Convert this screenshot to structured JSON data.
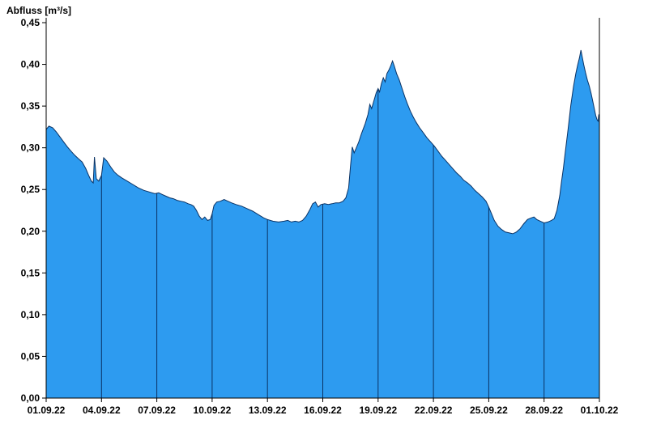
{
  "chart_data": {
    "type": "area",
    "title": "Abfluss [m³/s]",
    "ylabel": "Abfluss [m³/s]",
    "xlabel": "",
    "x_unit": "days since 01.09.22",
    "xlim": [
      0,
      30
    ],
    "ylim": [
      0,
      0.45
    ],
    "grid": "vertical-at-date-ticks",
    "legend": "none",
    "colors": {
      "fill": "#2d9bf0",
      "edge": "#0a3264",
      "axis": "#000000",
      "text": "#000000",
      "background": "#ffffff"
    },
    "x_ticks": [
      {
        "day": 0,
        "label": "01.09.22"
      },
      {
        "day": 3,
        "label": "04.09.22"
      },
      {
        "day": 6,
        "label": "07.09.22"
      },
      {
        "day": 9,
        "label": "10.09.22"
      },
      {
        "day": 12,
        "label": "13.09.22"
      },
      {
        "day": 15,
        "label": "16.09.22"
      },
      {
        "day": 18,
        "label": "19.09.22"
      },
      {
        "day": 21,
        "label": "22.09.22"
      },
      {
        "day": 24,
        "label": "25.09.22"
      },
      {
        "day": 27,
        "label": "28.09.22"
      },
      {
        "day": 30,
        "label": "01.10.22"
      }
    ],
    "y_ticks": [
      {
        "value": 0.0,
        "label": "0,00"
      },
      {
        "value": 0.05,
        "label": "0,05"
      },
      {
        "value": 0.1,
        "label": "0,10"
      },
      {
        "value": 0.15,
        "label": "0,15"
      },
      {
        "value": 0.2,
        "label": "0,20"
      },
      {
        "value": 0.25,
        "label": "0,25"
      },
      {
        "value": 0.3,
        "label": "0,30"
      },
      {
        "value": 0.35,
        "label": "0,35"
      },
      {
        "value": 0.4,
        "label": "0,40"
      },
      {
        "value": 0.45,
        "label": "0,45"
      }
    ],
    "series": [
      {
        "name": "Abfluss",
        "unit": "m³/s",
        "points": [
          [
            0,
            0.322
          ],
          [
            0.15,
            0.326
          ],
          [
            0.35,
            0.324
          ],
          [
            0.55,
            0.319
          ],
          [
            0.75,
            0.313
          ],
          [
            0.95,
            0.307
          ],
          [
            1.15,
            0.301
          ],
          [
            1.35,
            0.296
          ],
          [
            1.55,
            0.291
          ],
          [
            1.75,
            0.287
          ],
          [
            1.95,
            0.283
          ],
          [
            2.15,
            0.275
          ],
          [
            2.3,
            0.267
          ],
          [
            2.45,
            0.26
          ],
          [
            2.55,
            0.258
          ],
          [
            2.62,
            0.289
          ],
          [
            2.72,
            0.263
          ],
          [
            2.85,
            0.26
          ],
          [
            3,
            0.267
          ],
          [
            3.12,
            0.288
          ],
          [
            3.3,
            0.284
          ],
          [
            3.5,
            0.277
          ],
          [
            3.7,
            0.271
          ],
          [
            3.9,
            0.267
          ],
          [
            4.1,
            0.264
          ],
          [
            4.4,
            0.26
          ],
          [
            4.7,
            0.256
          ],
          [
            5,
            0.252
          ],
          [
            5.3,
            0.249
          ],
          [
            5.6,
            0.247
          ],
          [
            5.9,
            0.245
          ],
          [
            6.1,
            0.246
          ],
          [
            6.3,
            0.244
          ],
          [
            6.5,
            0.242
          ],
          [
            6.7,
            0.24
          ],
          [
            6.9,
            0.239
          ],
          [
            7.1,
            0.237
          ],
          [
            7.3,
            0.236
          ],
          [
            7.5,
            0.235
          ],
          [
            7.7,
            0.233
          ],
          [
            7.85,
            0.232
          ],
          [
            8,
            0.23
          ],
          [
            8.15,
            0.225
          ],
          [
            8.3,
            0.218
          ],
          [
            8.45,
            0.214
          ],
          [
            8.6,
            0.217
          ],
          [
            8.75,
            0.213
          ],
          [
            8.9,
            0.214
          ],
          [
            9,
            0.221
          ],
          [
            9.1,
            0.231
          ],
          [
            9.25,
            0.235
          ],
          [
            9.45,
            0.236
          ],
          [
            9.65,
            0.238
          ],
          [
            9.85,
            0.236
          ],
          [
            10.05,
            0.234
          ],
          [
            10.3,
            0.232
          ],
          [
            10.6,
            0.23
          ],
          [
            10.9,
            0.227
          ],
          [
            11.2,
            0.224
          ],
          [
            11.5,
            0.22
          ],
          [
            11.8,
            0.216
          ],
          [
            12,
            0.214
          ],
          [
            12.3,
            0.212
          ],
          [
            12.6,
            0.211
          ],
          [
            12.9,
            0.212
          ],
          [
            13.1,
            0.213
          ],
          [
            13.3,
            0.211
          ],
          [
            13.5,
            0.212
          ],
          [
            13.7,
            0.211
          ],
          [
            13.9,
            0.213
          ],
          [
            14.1,
            0.218
          ],
          [
            14.3,
            0.226
          ],
          [
            14.45,
            0.233
          ],
          [
            14.6,
            0.235
          ],
          [
            14.75,
            0.229
          ],
          [
            14.9,
            0.232
          ],
          [
            15.1,
            0.233
          ],
          [
            15.3,
            0.232
          ],
          [
            15.5,
            0.233
          ],
          [
            15.7,
            0.234
          ],
          [
            15.9,
            0.234
          ],
          [
            16.1,
            0.236
          ],
          [
            16.25,
            0.24
          ],
          [
            16.4,
            0.252
          ],
          [
            16.5,
            0.278
          ],
          [
            16.6,
            0.301
          ],
          [
            16.7,
            0.294
          ],
          [
            16.8,
            0.299
          ],
          [
            16.95,
            0.307
          ],
          [
            17.1,
            0.317
          ],
          [
            17.3,
            0.329
          ],
          [
            17.45,
            0.34
          ],
          [
            17.55,
            0.352
          ],
          [
            17.65,
            0.347
          ],
          [
            17.78,
            0.357
          ],
          [
            17.9,
            0.366
          ],
          [
            18,
            0.371
          ],
          [
            18.08,
            0.367
          ],
          [
            18.18,
            0.377
          ],
          [
            18.28,
            0.384
          ],
          [
            18.38,
            0.379
          ],
          [
            18.48,
            0.389
          ],
          [
            18.58,
            0.393
          ],
          [
            18.68,
            0.398
          ],
          [
            18.78,
            0.404
          ],
          [
            18.88,
            0.398
          ],
          [
            19,
            0.389
          ],
          [
            19.15,
            0.381
          ],
          [
            19.3,
            0.371
          ],
          [
            19.45,
            0.361
          ],
          [
            19.6,
            0.352
          ],
          [
            19.75,
            0.344
          ],
          [
            19.9,
            0.337
          ],
          [
            20.05,
            0.331
          ],
          [
            20.25,
            0.324
          ],
          [
            20.45,
            0.318
          ],
          [
            20.65,
            0.312
          ],
          [
            20.85,
            0.307
          ],
          [
            21.05,
            0.302
          ],
          [
            21.25,
            0.296
          ],
          [
            21.45,
            0.29
          ],
          [
            21.65,
            0.285
          ],
          [
            21.85,
            0.28
          ],
          [
            22.05,
            0.275
          ],
          [
            22.25,
            0.27
          ],
          [
            22.45,
            0.266
          ],
          [
            22.65,
            0.261
          ],
          [
            22.85,
            0.258
          ],
          [
            23.05,
            0.254
          ],
          [
            23.25,
            0.249
          ],
          [
            23.45,
            0.245
          ],
          [
            23.65,
            0.241
          ],
          [
            23.85,
            0.236
          ],
          [
            24,
            0.229
          ],
          [
            24.15,
            0.221
          ],
          [
            24.3,
            0.213
          ],
          [
            24.5,
            0.206
          ],
          [
            24.7,
            0.202
          ],
          [
            24.9,
            0.199
          ],
          [
            25.1,
            0.198
          ],
          [
            25.3,
            0.197
          ],
          [
            25.5,
            0.199
          ],
          [
            25.7,
            0.203
          ],
          [
            25.9,
            0.209
          ],
          [
            26.1,
            0.214
          ],
          [
            26.3,
            0.216
          ],
          [
            26.45,
            0.217
          ],
          [
            26.6,
            0.214
          ],
          [
            26.8,
            0.212
          ],
          [
            27,
            0.21
          ],
          [
            27.2,
            0.211
          ],
          [
            27.4,
            0.213
          ],
          [
            27.55,
            0.215
          ],
          [
            27.7,
            0.225
          ],
          [
            27.85,
            0.243
          ],
          [
            27.95,
            0.26
          ],
          [
            28.05,
            0.276
          ],
          [
            28.15,
            0.295
          ],
          [
            28.3,
            0.322
          ],
          [
            28.45,
            0.351
          ],
          [
            28.6,
            0.374
          ],
          [
            28.72,
            0.389
          ],
          [
            28.82,
            0.399
          ],
          [
            28.92,
            0.408
          ],
          [
            29,
            0.417
          ],
          [
            29.07,
            0.409
          ],
          [
            29.15,
            0.4
          ],
          [
            29.25,
            0.39
          ],
          [
            29.35,
            0.381
          ],
          [
            29.45,
            0.374
          ],
          [
            29.55,
            0.365
          ],
          [
            29.65,
            0.355
          ],
          [
            29.73,
            0.346
          ],
          [
            29.8,
            0.339
          ],
          [
            29.87,
            0.334
          ],
          [
            29.93,
            0.332
          ],
          [
            29.97,
            0.34
          ],
          [
            30,
            0.336
          ]
        ]
      }
    ]
  }
}
